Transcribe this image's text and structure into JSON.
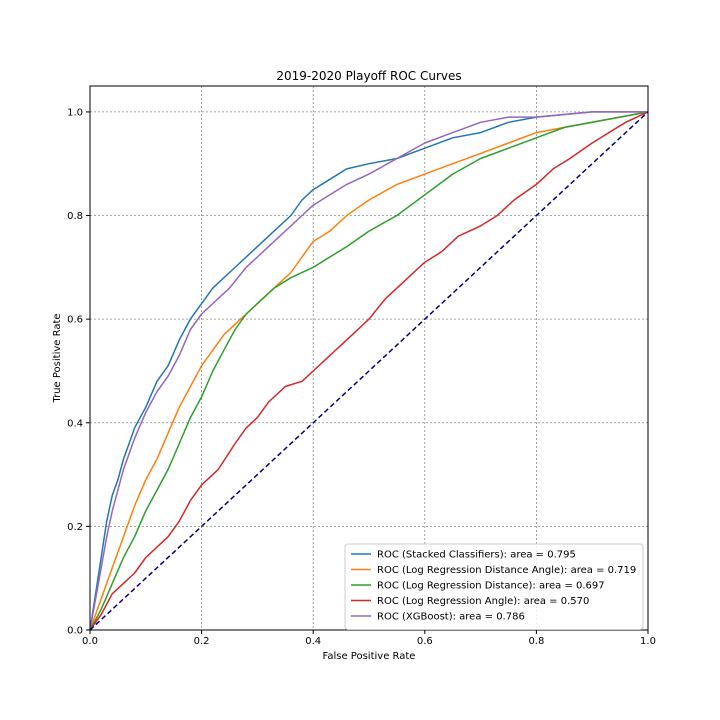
{
  "chart_data": {
    "type": "line",
    "title": "2019-2020 Playoff ROC Curves",
    "xlabel": "False Positive Rate",
    "ylabel": "True Positive Rate",
    "xlim": [
      0,
      1
    ],
    "ylim": [
      0,
      1.05
    ],
    "xticks": [
      0,
      0.2,
      0.4,
      0.6,
      0.8,
      1
    ],
    "xtick_labels": [
      "0.0",
      "0.2",
      "0.4",
      "0.6",
      "0.8",
      "1.0"
    ],
    "yticks": [
      0,
      0.2,
      0.4,
      0.6,
      0.8,
      1
    ],
    "ytick_labels": [
      "0.0",
      "0.2",
      "0.4",
      "0.6",
      "0.8",
      "1.0"
    ],
    "grid": true,
    "legend_position": "lower-right",
    "series": [
      {
        "name": "ROC (Stacked Classifiers): area = 0.795",
        "color": "#1f77b4",
        "x": [
          0,
          0.01,
          0.02,
          0.03,
          0.04,
          0.05,
          0.06,
          0.07,
          0.08,
          0.1,
          0.12,
          0.14,
          0.16,
          0.18,
          0.2,
          0.22,
          0.25,
          0.28,
          0.3,
          0.33,
          0.36,
          0.38,
          0.4,
          0.43,
          0.46,
          0.5,
          0.55,
          0.6,
          0.65,
          0.7,
          0.75,
          0.8,
          0.9,
          1
        ],
        "y": [
          0,
          0.07,
          0.14,
          0.21,
          0.26,
          0.29,
          0.33,
          0.36,
          0.39,
          0.43,
          0.48,
          0.51,
          0.56,
          0.6,
          0.63,
          0.66,
          0.69,
          0.72,
          0.74,
          0.77,
          0.8,
          0.83,
          0.85,
          0.87,
          0.89,
          0.9,
          0.91,
          0.93,
          0.95,
          0.96,
          0.98,
          0.99,
          1,
          1
        ]
      },
      {
        "name": "ROC (Log Regression Distance Angle): area = 0.719",
        "color": "#ff7f0e",
        "x": [
          0,
          0.02,
          0.04,
          0.06,
          0.08,
          0.1,
          0.12,
          0.14,
          0.16,
          0.18,
          0.2,
          0.22,
          0.24,
          0.26,
          0.28,
          0.3,
          0.33,
          0.36,
          0.38,
          0.4,
          0.43,
          0.46,
          0.5,
          0.55,
          0.6,
          0.65,
          0.7,
          0.75,
          0.8,
          0.85,
          0.9,
          1
        ],
        "y": [
          0,
          0.06,
          0.12,
          0.18,
          0.24,
          0.29,
          0.33,
          0.38,
          0.43,
          0.47,
          0.51,
          0.54,
          0.57,
          0.59,
          0.61,
          0.63,
          0.66,
          0.69,
          0.72,
          0.75,
          0.77,
          0.8,
          0.83,
          0.86,
          0.88,
          0.9,
          0.92,
          0.94,
          0.96,
          0.97,
          0.98,
          1
        ]
      },
      {
        "name": "ROC (Log Regression Distance): area = 0.697",
        "color": "#2ca02c",
        "x": [
          0,
          0.02,
          0.04,
          0.06,
          0.08,
          0.1,
          0.12,
          0.14,
          0.16,
          0.18,
          0.2,
          0.22,
          0.24,
          0.26,
          0.28,
          0.3,
          0.33,
          0.36,
          0.4,
          0.43,
          0.46,
          0.5,
          0.55,
          0.6,
          0.65,
          0.7,
          0.75,
          0.8,
          0.85,
          0.9,
          0.95,
          1
        ],
        "y": [
          0,
          0.04,
          0.09,
          0.14,
          0.18,
          0.23,
          0.27,
          0.31,
          0.36,
          0.41,
          0.45,
          0.5,
          0.54,
          0.58,
          0.61,
          0.63,
          0.66,
          0.68,
          0.7,
          0.72,
          0.74,
          0.77,
          0.8,
          0.84,
          0.88,
          0.91,
          0.93,
          0.95,
          0.97,
          0.98,
          0.99,
          1
        ]
      },
      {
        "name": "ROC (Log Regression Angle): area = 0.570",
        "color": "#d62728",
        "x": [
          0,
          0.02,
          0.04,
          0.06,
          0.08,
          0.1,
          0.12,
          0.14,
          0.16,
          0.18,
          0.2,
          0.23,
          0.26,
          0.28,
          0.3,
          0.32,
          0.35,
          0.38,
          0.4,
          0.43,
          0.46,
          0.5,
          0.53,
          0.56,
          0.6,
          0.63,
          0.66,
          0.7,
          0.73,
          0.76,
          0.8,
          0.83,
          0.86,
          0.9,
          0.93,
          0.96,
          1
        ],
        "y": [
          0,
          0.03,
          0.07,
          0.09,
          0.11,
          0.14,
          0.16,
          0.18,
          0.21,
          0.25,
          0.28,
          0.31,
          0.36,
          0.39,
          0.41,
          0.44,
          0.47,
          0.48,
          0.5,
          0.53,
          0.56,
          0.6,
          0.64,
          0.67,
          0.71,
          0.73,
          0.76,
          0.78,
          0.8,
          0.83,
          0.86,
          0.89,
          0.91,
          0.94,
          0.96,
          0.98,
          1
        ]
      },
      {
        "name": "ROC (XGBoost): area = 0.786",
        "color": "#9467bd",
        "x": [
          0,
          0.01,
          0.02,
          0.03,
          0.04,
          0.05,
          0.06,
          0.07,
          0.08,
          0.1,
          0.12,
          0.14,
          0.16,
          0.18,
          0.2,
          0.22,
          0.25,
          0.28,
          0.3,
          0.33,
          0.36,
          0.38,
          0.4,
          0.43,
          0.46,
          0.5,
          0.55,
          0.6,
          0.65,
          0.7,
          0.75,
          0.8,
          0.9,
          1
        ],
        "y": [
          0,
          0.06,
          0.12,
          0.18,
          0.23,
          0.27,
          0.31,
          0.34,
          0.37,
          0.42,
          0.46,
          0.49,
          0.53,
          0.58,
          0.61,
          0.63,
          0.66,
          0.7,
          0.72,
          0.75,
          0.78,
          0.8,
          0.82,
          0.84,
          0.86,
          0.88,
          0.91,
          0.94,
          0.96,
          0.98,
          0.99,
          0.99,
          1,
          1
        ]
      },
      {
        "name": "",
        "color": "#000080",
        "dashed": true,
        "x": [
          0,
          1
        ],
        "y": [
          0,
          1
        ]
      }
    ]
  }
}
